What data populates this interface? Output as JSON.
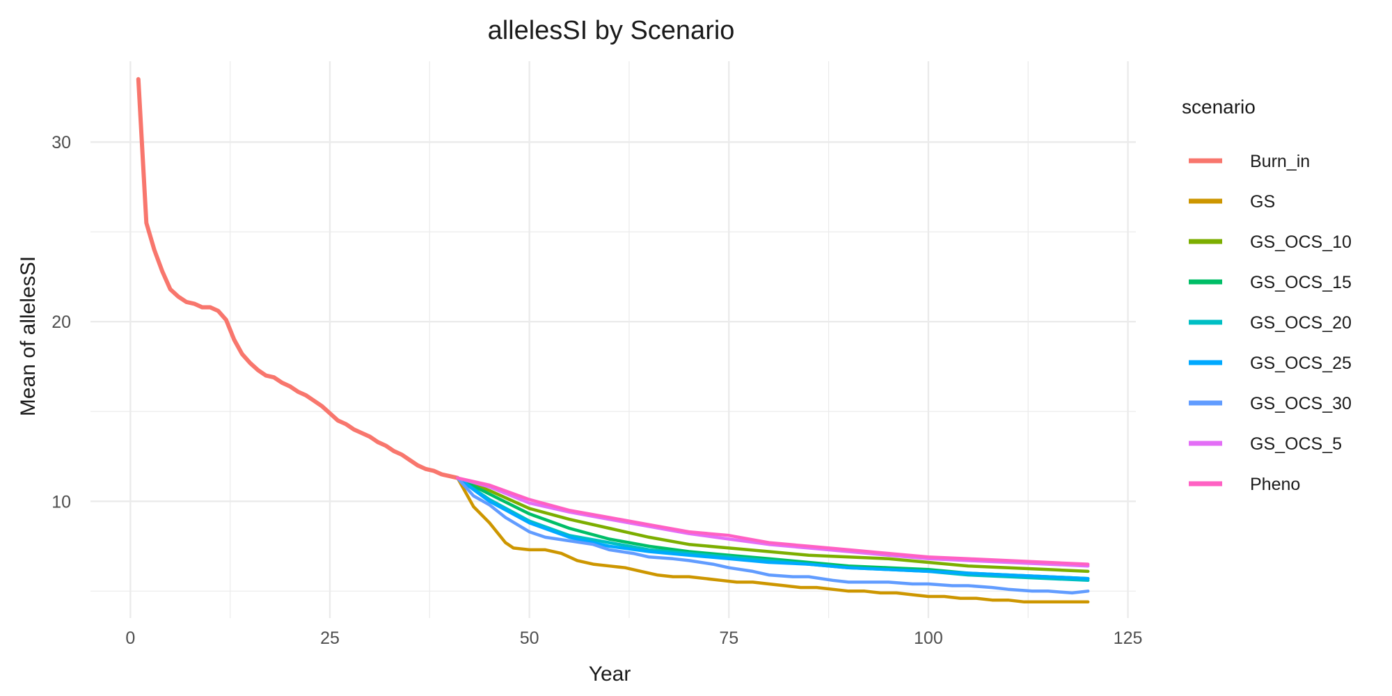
{
  "chart_data": {
    "type": "line",
    "title": "allelesSI by Scenario",
    "xlabel": "Year",
    "ylabel": "Mean of allelesSI",
    "xlim": [
      -5,
      126
    ],
    "ylim": [
      3.5,
      34.5
    ],
    "x_ticks": [
      0,
      25,
      50,
      75,
      100,
      125
    ],
    "y_ticks": [
      10,
      20,
      30
    ],
    "x_tick_labels": [
      "0",
      "25",
      "50",
      "75",
      "100",
      "125"
    ],
    "y_tick_labels": [
      "10",
      "20",
      "30"
    ],
    "grid": true,
    "legend": {
      "title": "scenario",
      "position": "right"
    },
    "series": [
      {
        "name": "Burn_in",
        "color": "#F8766D",
        "x": [
          1,
          2,
          3,
          4,
          5,
          6,
          7,
          8,
          9,
          10,
          11,
          12,
          13,
          14,
          15,
          16,
          17,
          18,
          19,
          20,
          21,
          22,
          23,
          24,
          25,
          26,
          27,
          28,
          29,
          30,
          31,
          32,
          33,
          34,
          35,
          36,
          37,
          38,
          39,
          40,
          41
        ],
        "y": [
          33.5,
          25.5,
          24.0,
          22.8,
          21.8,
          21.4,
          21.1,
          21.0,
          20.8,
          20.8,
          20.6,
          20.1,
          19.0,
          18.2,
          17.7,
          17.3,
          17.0,
          16.9,
          16.6,
          16.4,
          16.1,
          15.9,
          15.6,
          15.3,
          14.9,
          14.5,
          14.3,
          14.0,
          13.8,
          13.6,
          13.3,
          13.1,
          12.8,
          12.6,
          12.3,
          12.0,
          11.8,
          11.7,
          11.5,
          11.4,
          11.3
        ]
      },
      {
        "name": "GS",
        "color": "#CD9600",
        "x": [
          41,
          43,
          45,
          47,
          48,
          50,
          52,
          54,
          56,
          58,
          60,
          62,
          64,
          66,
          68,
          70,
          72,
          74,
          76,
          78,
          80,
          82,
          84,
          86,
          88,
          90,
          92,
          94,
          96,
          98,
          100,
          102,
          104,
          106,
          108,
          110,
          112,
          114,
          116,
          118,
          120
        ],
        "y": [
          11.3,
          9.7,
          8.8,
          7.7,
          7.4,
          7.3,
          7.3,
          7.1,
          6.7,
          6.5,
          6.4,
          6.3,
          6.1,
          5.9,
          5.8,
          5.8,
          5.7,
          5.6,
          5.5,
          5.5,
          5.4,
          5.3,
          5.2,
          5.2,
          5.1,
          5.0,
          5.0,
          4.9,
          4.9,
          4.8,
          4.7,
          4.7,
          4.6,
          4.6,
          4.5,
          4.5,
          4.4,
          4.4,
          4.4,
          4.4,
          4.4
        ]
      },
      {
        "name": "GS_OCS_10",
        "color": "#7CAE00",
        "x": [
          41,
          45,
          50,
          55,
          60,
          65,
          70,
          75,
          80,
          85,
          90,
          95,
          100,
          105,
          110,
          115,
          120
        ],
        "y": [
          11.3,
          10.6,
          9.6,
          9.0,
          8.5,
          8.0,
          7.6,
          7.4,
          7.2,
          7.0,
          6.9,
          6.8,
          6.6,
          6.4,
          6.3,
          6.2,
          6.1
        ]
      },
      {
        "name": "GS_OCS_15",
        "color": "#00BE67",
        "x": [
          41,
          45,
          50,
          55,
          60,
          65,
          70,
          75,
          80,
          85,
          90,
          95,
          100,
          105,
          110,
          115,
          120
        ],
        "y": [
          11.3,
          10.4,
          9.3,
          8.5,
          7.9,
          7.5,
          7.2,
          7.0,
          6.8,
          6.6,
          6.4,
          6.3,
          6.2,
          6.0,
          5.9,
          5.8,
          5.7
        ]
      },
      {
        "name": "GS_OCS_20",
        "color": "#00BFC4",
        "x": [
          41,
          45,
          50,
          55,
          60,
          65,
          70,
          75,
          80,
          85,
          90,
          95,
          100,
          105,
          110,
          115,
          120
        ],
        "y": [
          11.3,
          10.1,
          8.9,
          8.1,
          7.7,
          7.3,
          7.1,
          6.9,
          6.7,
          6.5,
          6.3,
          6.2,
          6.1,
          5.9,
          5.8,
          5.7,
          5.6
        ]
      },
      {
        "name": "GS_OCS_25",
        "color": "#00A9FF",
        "x": [
          41,
          45,
          50,
          55,
          60,
          65,
          70,
          75,
          80,
          85,
          90,
          95,
          100,
          105,
          110,
          115,
          120
        ],
        "y": [
          11.3,
          10.0,
          8.8,
          8.0,
          7.5,
          7.2,
          7.0,
          6.8,
          6.6,
          6.5,
          6.3,
          6.2,
          6.1,
          6.0,
          5.9,
          5.8,
          5.7
        ]
      },
      {
        "name": "GS_OCS_30",
        "color": "#619CFF",
        "x": [
          41,
          43,
          45,
          47,
          50,
          52,
          55,
          58,
          60,
          63,
          65,
          68,
          70,
          73,
          75,
          78,
          80,
          83,
          85,
          88,
          90,
          93,
          95,
          98,
          100,
          103,
          105,
          108,
          110,
          113,
          115,
          118,
          120
        ],
        "y": [
          11.3,
          10.3,
          9.8,
          9.1,
          8.3,
          8.0,
          7.8,
          7.6,
          7.3,
          7.1,
          6.9,
          6.8,
          6.7,
          6.5,
          6.3,
          6.1,
          5.9,
          5.8,
          5.8,
          5.6,
          5.5,
          5.5,
          5.5,
          5.4,
          5.4,
          5.3,
          5.3,
          5.2,
          5.1,
          5.0,
          5.0,
          4.9,
          5.0
        ]
      },
      {
        "name": "GS_OCS_5",
        "color": "#E36EF6",
        "x": [
          41,
          45,
          50,
          55,
          60,
          65,
          70,
          75,
          80,
          85,
          90,
          95,
          100,
          105,
          110,
          115,
          120
        ],
        "y": [
          11.3,
          10.8,
          9.9,
          9.4,
          9.0,
          8.6,
          8.2,
          7.9,
          7.6,
          7.4,
          7.2,
          7.0,
          6.8,
          6.7,
          6.6,
          6.5,
          6.4
        ]
      },
      {
        "name": "Pheno",
        "color": "#FF61C3",
        "x": [
          41,
          45,
          50,
          55,
          60,
          65,
          70,
          75,
          80,
          85,
          90,
          95,
          100,
          105,
          110,
          115,
          120
        ],
        "y": [
          11.3,
          10.9,
          10.1,
          9.5,
          9.1,
          8.7,
          8.3,
          8.1,
          7.7,
          7.5,
          7.3,
          7.1,
          6.9,
          6.8,
          6.7,
          6.6,
          6.5
        ]
      }
    ]
  }
}
